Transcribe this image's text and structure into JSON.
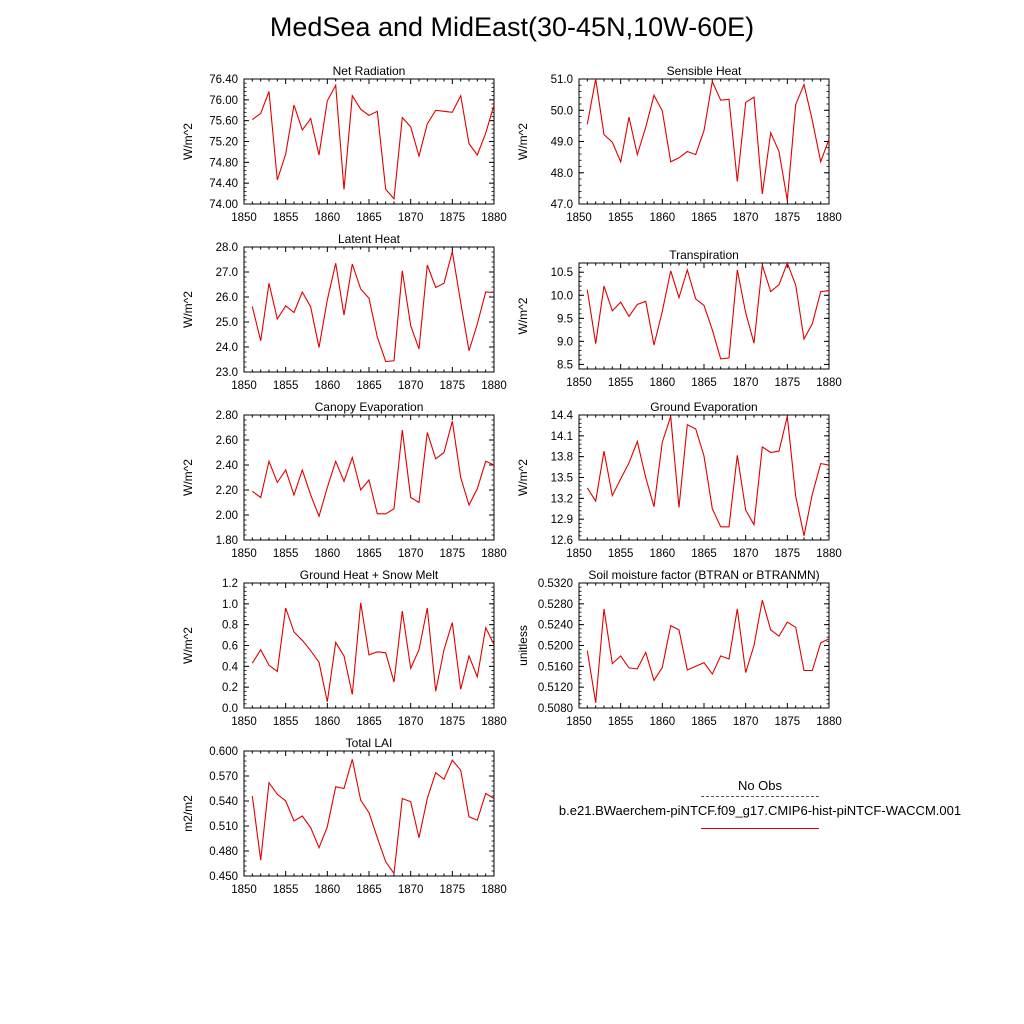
{
  "title": "MedSea and MidEast(30-45N,10W-60E)",
  "legend": {
    "obs_label": "No Obs",
    "model_label": "b.e21.BWaerchem-piNTCF.f09_g17.CMIP6-hist-piNTCF-WACCM.001",
    "model_color": "#e00000",
    "obs_color": "#555555"
  },
  "chart_data": [
    {
      "type": "line",
      "title": "Net Radiation",
      "ylabel": "W/m^2",
      "xlim": [
        1850,
        1880
      ],
      "ylim": [
        74.0,
        76.4
      ],
      "xticks": [
        "1850",
        "1855",
        "1860",
        "1865",
        "1870",
        "1875",
        "1880"
      ],
      "yticks": [
        "74.00",
        "74.40",
        "74.80",
        "75.20",
        "75.60",
        "76.00",
        "76.40"
      ],
      "grid": false,
      "series": [
        {
          "color": "#e00000",
          "x": [
            1851,
            1852,
            1853,
            1854,
            1855,
            1856,
            1857,
            1858,
            1859,
            1860,
            1861,
            1862,
            1863,
            1864,
            1865,
            1866,
            1867,
            1868,
            1869,
            1870,
            1871,
            1872,
            1873,
            1874,
            1875,
            1876,
            1877,
            1878,
            1879,
            1880
          ],
          "y": [
            75.62,
            75.74,
            76.16,
            74.46,
            74.96,
            75.9,
            75.42,
            75.64,
            74.94,
            75.98,
            76.28,
            74.28,
            76.08,
            75.82,
            75.7,
            75.78,
            74.28,
            74.1,
            75.66,
            75.48,
            74.92,
            75.54,
            75.8,
            75.78,
            75.76,
            76.08,
            75.16,
            74.94,
            75.36,
            75.9
          ]
        }
      ]
    },
    {
      "type": "line",
      "title": "Sensible Heat",
      "ylabel": "W/m^2",
      "xlim": [
        1850,
        1880
      ],
      "ylim": [
        47.0,
        51.0
      ],
      "xticks": [
        "1850",
        "1855",
        "1860",
        "1865",
        "1870",
        "1875",
        "1880"
      ],
      "yticks": [
        "47.0",
        "48.0",
        "49.0",
        "50.0",
        "51.0"
      ],
      "grid": false,
      "series": [
        {
          "color": "#e00000",
          "x": [
            1851,
            1852,
            1853,
            1854,
            1855,
            1856,
            1857,
            1858,
            1859,
            1860,
            1861,
            1862,
            1863,
            1864,
            1865,
            1866,
            1867,
            1868,
            1869,
            1870,
            1871,
            1872,
            1873,
            1874,
            1875,
            1876,
            1877,
            1878,
            1879,
            1880
          ],
          "y": [
            49.55,
            51.0,
            49.22,
            48.98,
            48.35,
            49.78,
            48.58,
            49.45,
            50.48,
            49.98,
            48.35,
            48.48,
            48.68,
            48.58,
            49.35,
            50.92,
            50.32,
            50.35,
            47.72,
            50.25,
            50.42,
            47.32,
            49.28,
            48.68,
            47.12,
            50.18,
            50.82,
            49.68,
            48.35,
            49.08
          ]
        }
      ]
    },
    {
      "type": "line",
      "title": "Latent Heat",
      "ylabel": "W/m^2",
      "xlim": [
        1850,
        1880
      ],
      "ylim": [
        23.0,
        28.0
      ],
      "xticks": [
        "1850",
        "1855",
        "1860",
        "1865",
        "1870",
        "1875",
        "1880"
      ],
      "yticks": [
        "23.0",
        "24.0",
        "25.0",
        "26.0",
        "27.0",
        "28.0"
      ],
      "grid": false,
      "series": [
        {
          "color": "#e00000",
          "x": [
            1851,
            1852,
            1853,
            1854,
            1855,
            1856,
            1857,
            1858,
            1859,
            1860,
            1861,
            1862,
            1863,
            1864,
            1865,
            1866,
            1867,
            1868,
            1869,
            1870,
            1871,
            1872,
            1873,
            1874,
            1875,
            1876,
            1877,
            1878,
            1879,
            1880
          ],
          "y": [
            25.62,
            24.25,
            26.55,
            25.12,
            25.65,
            25.38,
            26.2,
            25.6,
            23.98,
            25.88,
            27.35,
            25.28,
            27.32,
            26.32,
            25.95,
            24.4,
            23.42,
            23.45,
            27.05,
            24.85,
            23.92,
            27.28,
            26.38,
            26.55,
            27.82,
            25.78,
            23.85,
            24.92,
            26.2,
            26.18
          ]
        }
      ]
    },
    {
      "type": "line",
      "title": "Transpiration",
      "ylabel": "W/m^2",
      "xlim": [
        1850,
        1880
      ],
      "ylim": [
        8.4,
        10.7
      ],
      "xticks": [
        "1850",
        "1855",
        "1860",
        "1865",
        "1870",
        "1875",
        "1880"
      ],
      "yticks": [
        "8.5",
        "9.0",
        "9.5",
        "10.0",
        "10.5"
      ],
      "grid": false,
      "series": [
        {
          "color": "#e00000",
          "x": [
            1851,
            1852,
            1853,
            1854,
            1855,
            1856,
            1857,
            1858,
            1859,
            1860,
            1861,
            1862,
            1863,
            1864,
            1865,
            1866,
            1867,
            1868,
            1869,
            1870,
            1871,
            1872,
            1873,
            1874,
            1875,
            1876,
            1877,
            1878,
            1879,
            1880
          ],
          "y": [
            10.12,
            8.95,
            10.2,
            9.66,
            9.85,
            9.54,
            9.8,
            9.87,
            8.92,
            9.65,
            10.53,
            9.95,
            10.55,
            9.92,
            9.78,
            9.25,
            8.62,
            8.64,
            10.55,
            9.62,
            8.96,
            10.65,
            10.08,
            10.23,
            10.7,
            10.22,
            9.05,
            9.38,
            10.08,
            10.1
          ]
        }
      ]
    },
    {
      "type": "line",
      "title": "Canopy Evaporation",
      "ylabel": "W/m^2",
      "xlim": [
        1850,
        1880
      ],
      "ylim": [
        1.8,
        2.8
      ],
      "xticks": [
        "1850",
        "1855",
        "1860",
        "1865",
        "1870",
        "1875",
        "1880"
      ],
      "yticks": [
        "1.80",
        "2.00",
        "2.20",
        "2.40",
        "2.60",
        "2.80"
      ],
      "grid": false,
      "series": [
        {
          "color": "#e00000",
          "x": [
            1851,
            1852,
            1853,
            1854,
            1855,
            1856,
            1857,
            1858,
            1859,
            1860,
            1861,
            1862,
            1863,
            1864,
            1865,
            1866,
            1867,
            1868,
            1869,
            1870,
            1871,
            1872,
            1873,
            1874,
            1875,
            1876,
            1877,
            1878,
            1879,
            1880
          ],
          "y": [
            2.19,
            2.14,
            2.43,
            2.26,
            2.36,
            2.16,
            2.36,
            2.16,
            1.99,
            2.22,
            2.43,
            2.27,
            2.46,
            2.2,
            2.28,
            2.01,
            2.01,
            2.05,
            2.68,
            2.14,
            2.1,
            2.66,
            2.45,
            2.5,
            2.75,
            2.3,
            2.08,
            2.21,
            2.43,
            2.4
          ]
        }
      ]
    },
    {
      "type": "line",
      "title": "Ground Evaporation",
      "ylabel": "W/m^2",
      "xlim": [
        1850,
        1880
      ],
      "ylim": [
        12.6,
        14.4
      ],
      "xticks": [
        "1850",
        "1855",
        "1860",
        "1865",
        "1870",
        "1875",
        "1880"
      ],
      "yticks": [
        "12.6",
        "12.9",
        "13.2",
        "13.5",
        "13.8",
        "14.1",
        "14.4"
      ],
      "grid": false,
      "series": [
        {
          "color": "#e00000",
          "x": [
            1851,
            1852,
            1853,
            1854,
            1855,
            1856,
            1857,
            1858,
            1859,
            1860,
            1861,
            1862,
            1863,
            1864,
            1865,
            1866,
            1867,
            1868,
            1869,
            1870,
            1871,
            1872,
            1873,
            1874,
            1875,
            1876,
            1877,
            1878,
            1879,
            1880
          ],
          "y": [
            13.35,
            13.16,
            13.88,
            13.24,
            13.48,
            13.71,
            14.02,
            13.5,
            13.08,
            14.01,
            14.38,
            13.07,
            14.26,
            14.2,
            13.81,
            13.05,
            12.79,
            12.79,
            13.82,
            13.03,
            12.82,
            13.94,
            13.86,
            13.88,
            14.38,
            13.23,
            12.66,
            13.26,
            13.7,
            13.68
          ]
        }
      ]
    },
    {
      "type": "line",
      "title": "Ground Heat + Snow Melt",
      "ylabel": "W/m^2",
      "xlim": [
        1850,
        1880
      ],
      "ylim": [
        0.0,
        1.2
      ],
      "xticks": [
        "1850",
        "1855",
        "1860",
        "1865",
        "1870",
        "1875",
        "1880"
      ],
      "yticks": [
        "0.0",
        "0.2",
        "0.4",
        "0.6",
        "0.8",
        "1.0",
        "1.2"
      ],
      "grid": false,
      "series": [
        {
          "color": "#e00000",
          "x": [
            1851,
            1852,
            1853,
            1854,
            1855,
            1856,
            1857,
            1858,
            1859,
            1860,
            1861,
            1862,
            1863,
            1864,
            1865,
            1866,
            1867,
            1868,
            1869,
            1870,
            1871,
            1872,
            1873,
            1874,
            1875,
            1876,
            1877,
            1878,
            1879,
            1880
          ],
          "y": [
            0.43,
            0.56,
            0.41,
            0.35,
            0.96,
            0.73,
            0.65,
            0.55,
            0.44,
            0.06,
            0.63,
            0.5,
            0.13,
            1.01,
            0.51,
            0.54,
            0.53,
            0.25,
            0.93,
            0.38,
            0.56,
            0.96,
            0.16,
            0.56,
            0.82,
            0.18,
            0.5,
            0.3,
            0.77,
            0.61
          ]
        }
      ]
    },
    {
      "type": "line",
      "title": "Soil moisture factor (BTRAN or BTRANMN)",
      "ylabel": "unitless",
      "xlim": [
        1850,
        1880
      ],
      "ylim": [
        0.508,
        0.532
      ],
      "xticks": [
        "1850",
        "1855",
        "1860",
        "1865",
        "1870",
        "1875",
        "1880"
      ],
      "yticks": [
        "0.5080",
        "0.5120",
        "0.5160",
        "0.5200",
        "0.5240",
        "0.5280",
        "0.5320"
      ],
      "grid": false,
      "series": [
        {
          "color": "#e00000",
          "x": [
            1851,
            1852,
            1853,
            1854,
            1855,
            1856,
            1857,
            1858,
            1859,
            1860,
            1861,
            1862,
            1863,
            1864,
            1865,
            1866,
            1867,
            1868,
            1869,
            1870,
            1871,
            1872,
            1873,
            1874,
            1875,
            1876,
            1877,
            1878,
            1879,
            1880
          ],
          "y": [
            0.519,
            0.509,
            0.527,
            0.5165,
            0.518,
            0.5157,
            0.5155,
            0.5187,
            0.5133,
            0.5158,
            0.5238,
            0.523,
            0.5153,
            0.516,
            0.5167,
            0.5145,
            0.518,
            0.5174,
            0.527,
            0.5148,
            0.52,
            0.5287,
            0.523,
            0.5218,
            0.5245,
            0.5235,
            0.5152,
            0.5152,
            0.5205,
            0.5213
          ]
        }
      ]
    },
    {
      "type": "line",
      "title": "Total LAI",
      "ylabel": "m2/m2",
      "xlim": [
        1850,
        1880
      ],
      "ylim": [
        0.45,
        0.6
      ],
      "xticks": [
        "1850",
        "1855",
        "1860",
        "1865",
        "1870",
        "1875",
        "1880"
      ],
      "yticks": [
        "0.450",
        "0.480",
        "0.510",
        "0.540",
        "0.570",
        "0.600"
      ],
      "grid": false,
      "series": [
        {
          "color": "#e00000",
          "x": [
            1851,
            1852,
            1853,
            1854,
            1855,
            1856,
            1857,
            1858,
            1859,
            1860,
            1861,
            1862,
            1863,
            1864,
            1865,
            1866,
            1867,
            1868,
            1869,
            1870,
            1871,
            1872,
            1873,
            1874,
            1875,
            1876,
            1877,
            1878,
            1879,
            1880
          ],
          "y": [
            0.546,
            0.469,
            0.562,
            0.548,
            0.54,
            0.516,
            0.522,
            0.508,
            0.484,
            0.509,
            0.557,
            0.555,
            0.59,
            0.541,
            0.526,
            0.496,
            0.467,
            0.453,
            0.543,
            0.539,
            0.496,
            0.543,
            0.574,
            0.566,
            0.589,
            0.577,
            0.521,
            0.517,
            0.549,
            0.543
          ]
        }
      ]
    }
  ]
}
